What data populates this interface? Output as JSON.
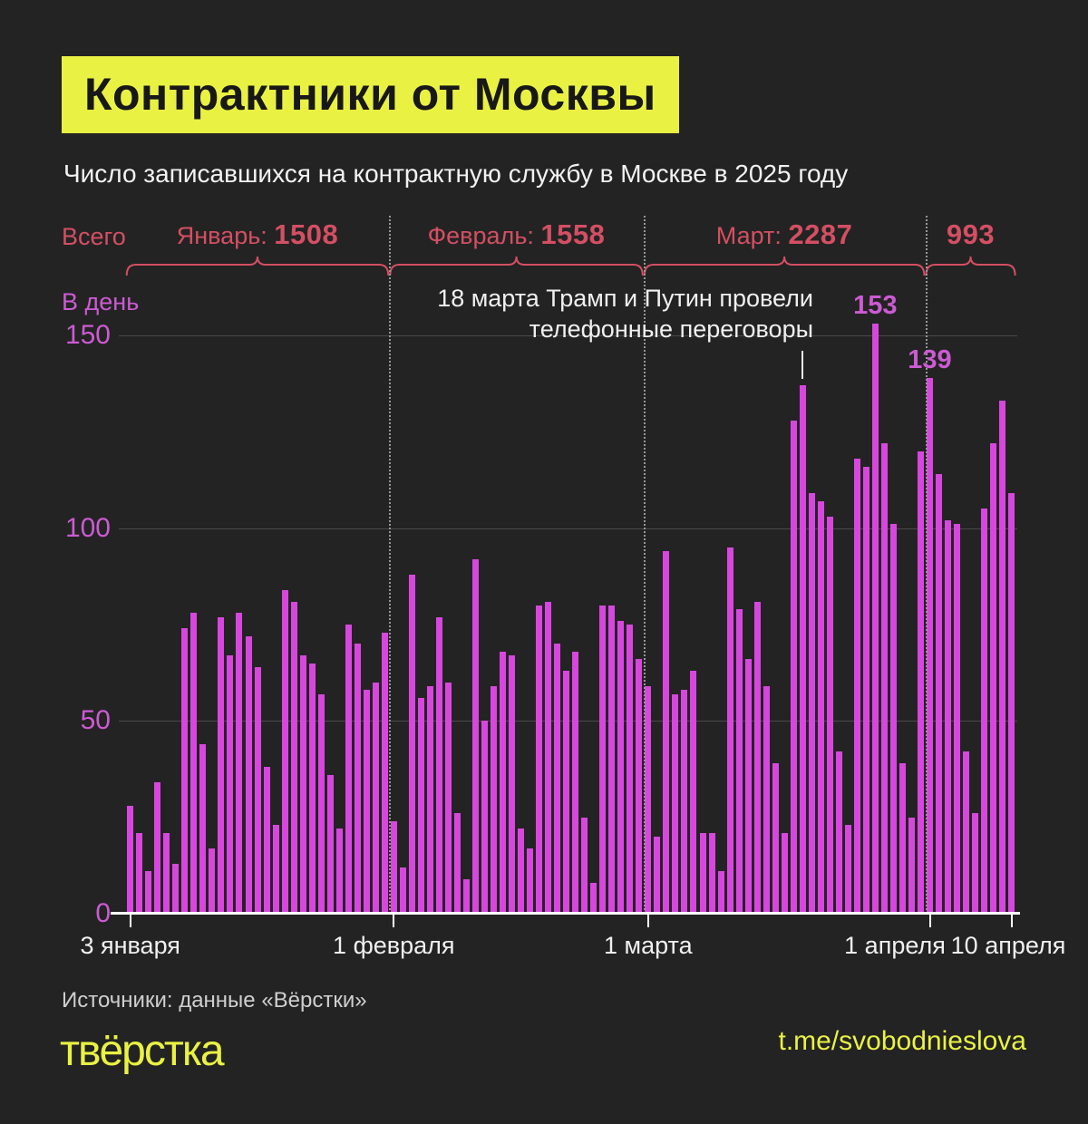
{
  "title": "Контрактники от Москвы",
  "subtitle": "Число записавшихся на контрактную службу в Москве в 2025 году",
  "totals_label": "Всего",
  "annotation": {
    "line1": "18 марта Трамп и Путин провели",
    "line2": "телефонные переговоры",
    "pointer_day_index": 74
  },
  "footer": {
    "source": "Источники: данные «Вёрстки»",
    "logo": "твёрстка",
    "link": "t.me/svobodnieslova"
  },
  "colors": {
    "background": "#232323",
    "yellow": "#e9f243",
    "crimson": "#d44f63",
    "bar": "#d747de",
    "magenta_text": "#cc5bd3"
  },
  "chart_data": {
    "type": "bar",
    "title": "Контрактники от Москвы",
    "ylabel": "В день",
    "yticks": [
      0,
      50,
      100,
      150
    ],
    "ylim": [
      0,
      160
    ],
    "grid": "horizontal",
    "x_tick_labels": [
      "3 января",
      "1 февраля",
      "1 марта",
      "1 апреля",
      "10 апреля"
    ],
    "x_tick_day_index": [
      0,
      29,
      57,
      88,
      97
    ],
    "peak_labels": [
      "153",
      "139"
    ],
    "months": [
      {
        "name": "Январь:",
        "total": "1508",
        "values": [
          28,
          21,
          11,
          34,
          21,
          13,
          74,
          78,
          44,
          17,
          77,
          67,
          78,
          72,
          64,
          38,
          23,
          84,
          81,
          67,
          65,
          57,
          36,
          22,
          75,
          70,
          58,
          60,
          73
        ]
      },
      {
        "name": "Февраль:",
        "total": "1558",
        "values": [
          24,
          12,
          88,
          56,
          59,
          77,
          60,
          26,
          9,
          92,
          50,
          59,
          68,
          67,
          22,
          17,
          80,
          81,
          70,
          63,
          68,
          25,
          8,
          80,
          80,
          76,
          75,
          66
        ]
      },
      {
        "name": "Март:",
        "total": "2287",
        "values": [
          59,
          20,
          94,
          57,
          58,
          63,
          21,
          21,
          11,
          95,
          79,
          66,
          81,
          59,
          39,
          21,
          128,
          137,
          109,
          107,
          103,
          42,
          23,
          118,
          116,
          153,
          122,
          101,
          39,
          25,
          120
        ]
      },
      {
        "name": "",
        "total": "993",
        "values": [
          139,
          114,
          102,
          101,
          42,
          26,
          105,
          122,
          133,
          109
        ]
      }
    ]
  }
}
